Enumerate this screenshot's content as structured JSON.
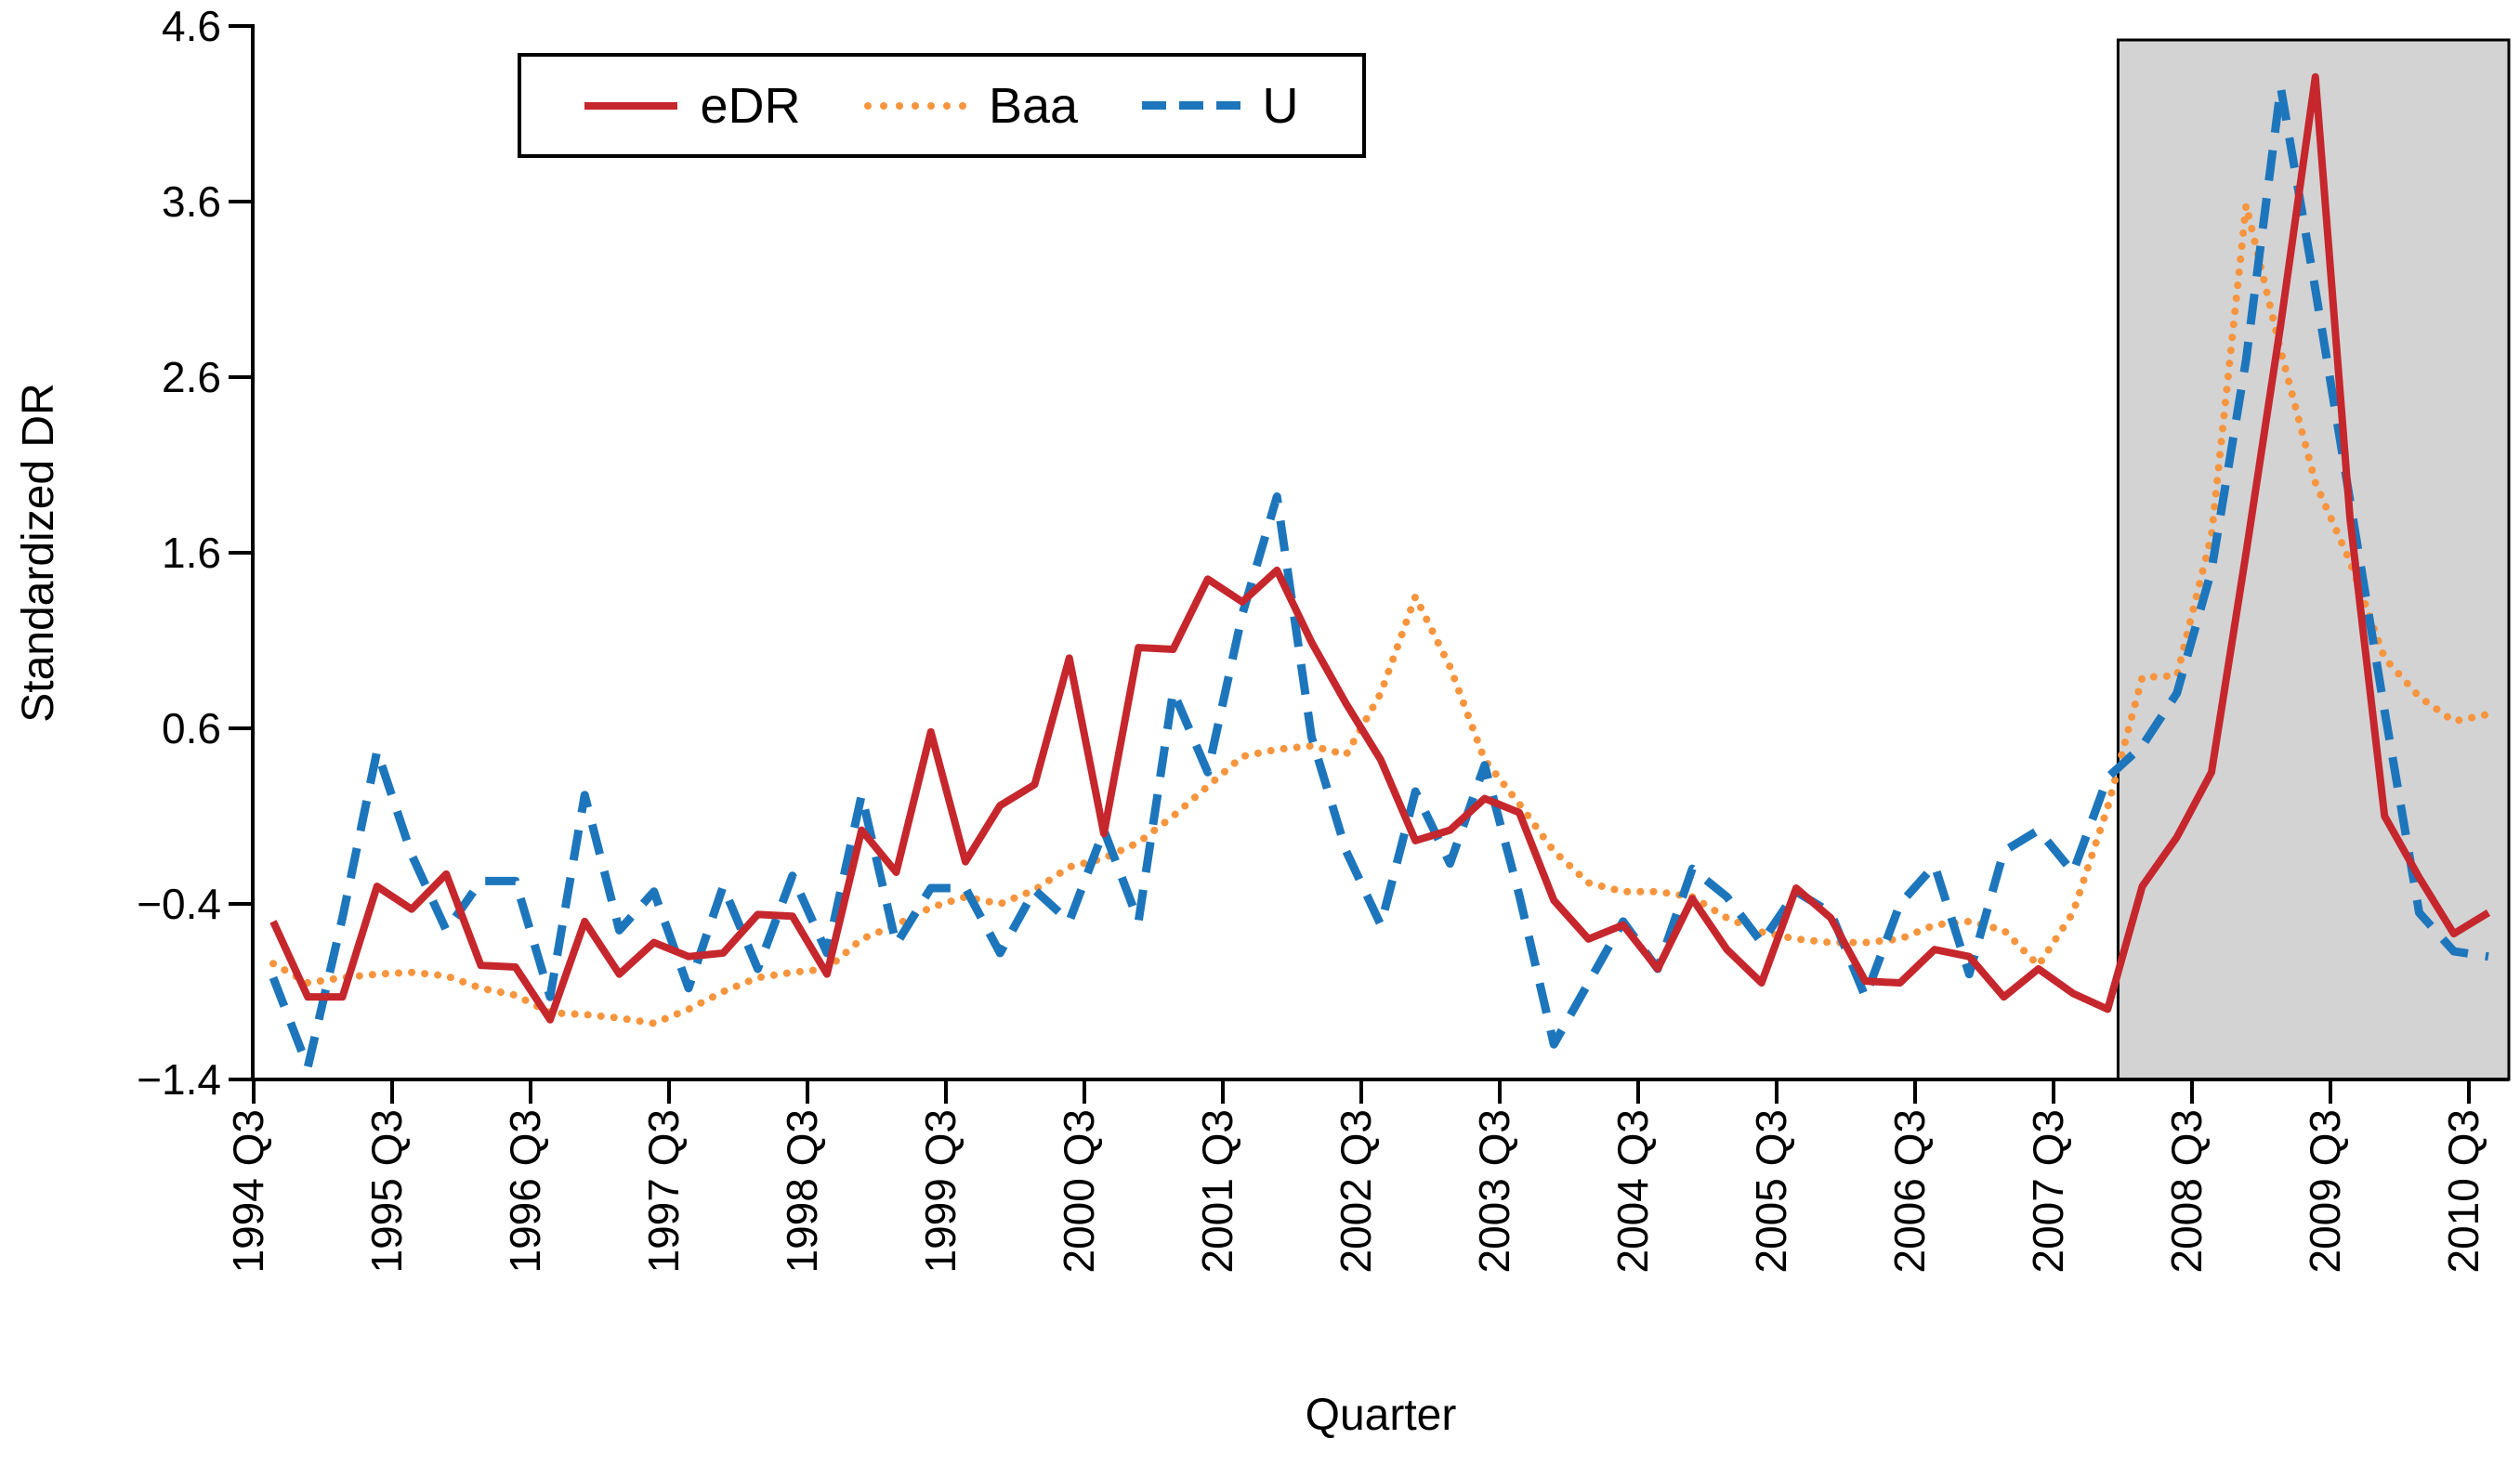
{
  "chart_data": {
    "type": "line",
    "title": "",
    "xlabel": "Quarter",
    "ylabel": "Standardized DR",
    "ylim": [
      -1.4,
      4.6
    ],
    "y_tick_labels": [
      "4.6",
      "3.6",
      "2.6",
      "1.6",
      "0.6",
      "−0.4",
      "−1.4"
    ],
    "y_tick_values": [
      4.6,
      3.6,
      2.6,
      1.6,
      0.6,
      -0.4,
      -1.4
    ],
    "x_tick_labels": [
      "1994 Q3",
      "1995 Q3",
      "1996 Q3",
      "1997 Q3",
      "1998 Q3",
      "1999 Q3",
      "2000 Q3",
      "2001 Q3",
      "2002 Q3",
      "2003 Q3",
      "2004 Q3",
      "2005 Q3",
      "2006 Q3",
      "2007 Q3",
      "2008 Q3",
      "2009 Q3",
      "2010 Q3"
    ],
    "x_start": "1994 Q3",
    "x_frequency": "quarterly",
    "grid": false,
    "legend_position": "top-left-inside",
    "shaded_region": {
      "description": "recession shading, 2008Q1 through end of sample",
      "from_quarter_index": 53.3,
      "to_quarter_index": 64.6,
      "fill": "#d3d3d4"
    },
    "series": [
      {
        "name": "eDR",
        "style": "solid",
        "color": "#c5272d",
        "values": [
          -0.5,
          -0.93,
          -0.93,
          -0.3,
          -0.43,
          -0.23,
          -0.75,
          -0.76,
          -1.06,
          -0.5,
          -0.8,
          -0.62,
          -0.7,
          -0.68,
          -0.46,
          -0.47,
          -0.8,
          0.02,
          -0.22,
          0.58,
          -0.16,
          0.16,
          0.28,
          1.0,
          0.0,
          1.06,
          1.05,
          1.45,
          1.32,
          1.5,
          1.09,
          0.74,
          0.42,
          -0.04,
          0.02,
          0.2,
          0.12,
          -0.38,
          -0.6,
          -0.52,
          -0.77,
          -0.37,
          -0.66,
          -0.85,
          -0.31,
          -0.48,
          -0.84,
          -0.85,
          -0.66,
          -0.7,
          -0.93,
          -0.77,
          -0.91,
          -1.0,
          -0.3,
          -0.02,
          0.35,
          1.6,
          2.9,
          4.31,
          1.8,
          0.1,
          -0.25,
          -0.57,
          -0.45
        ]
      },
      {
        "name": "Baa",
        "style": "dotted",
        "color": "#f6953e",
        "values": [
          -0.74,
          -0.85,
          -0.82,
          -0.8,
          -0.79,
          -0.81,
          -0.88,
          -0.92,
          -1.02,
          -1.03,
          -1.05,
          -1.08,
          -1.0,
          -0.9,
          -0.82,
          -0.79,
          -0.77,
          -0.6,
          -0.52,
          -0.42,
          -0.36,
          -0.4,
          -0.32,
          -0.19,
          -0.14,
          -0.05,
          0.1,
          0.27,
          0.44,
          0.48,
          0.5,
          0.45,
          0.8,
          1.35,
          0.95,
          0.42,
          0.17,
          -0.1,
          -0.28,
          -0.33,
          -0.33,
          -0.36,
          -0.48,
          -0.56,
          -0.6,
          -0.62,
          -0.62,
          -0.6,
          -0.52,
          -0.5,
          -0.55,
          -0.75,
          -0.45,
          0.15,
          0.89,
          0.9,
          1.7,
          3.58,
          2.75,
          2.0,
          1.55,
          1.0,
          0.78,
          0.64,
          0.68
        ]
      },
      {
        "name": "U",
        "style": "dashed",
        "color": "#1d76bc",
        "values": [
          -0.82,
          -1.33,
          -0.48,
          0.47,
          -0.12,
          -0.55,
          -0.27,
          -0.27,
          -0.93,
          0.22,
          -0.55,
          -0.33,
          -0.88,
          -0.3,
          -0.77,
          -0.24,
          -0.68,
          0.22,
          -0.63,
          -0.31,
          -0.31,
          -0.68,
          -0.32,
          -0.5,
          0.02,
          -0.5,
          0.81,
          0.35,
          1.25,
          1.92,
          0.55,
          -0.1,
          -0.52,
          0.24,
          -0.17,
          0.39,
          -0.35,
          -1.2,
          -0.85,
          -0.5,
          -0.77,
          -0.2,
          -0.36,
          -0.62,
          -0.33,
          -0.45,
          -0.93,
          -0.4,
          -0.18,
          -0.8,
          -0.1,
          0.02,
          -0.22,
          0.32,
          0.5,
          0.8,
          1.5,
          2.7,
          4.25,
          3.1,
          1.9,
          0.7,
          -0.45,
          -0.67,
          -0.7
        ]
      }
    ]
  },
  "legend": {
    "items": [
      {
        "label": "eDR"
      },
      {
        "label": "Baa"
      },
      {
        "label": "U"
      }
    ]
  },
  "axes": {
    "y_title": "Standardized DR",
    "x_title": "Quarter"
  }
}
